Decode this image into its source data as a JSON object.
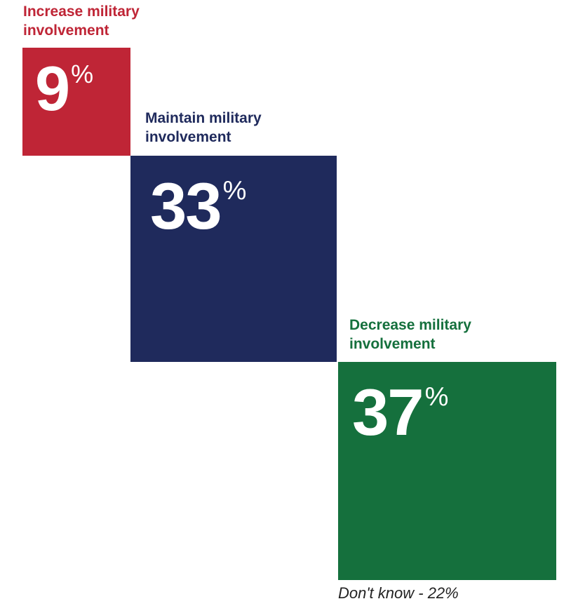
{
  "chart_data": {
    "type": "area",
    "categories": [
      "Increase military\ninvolvement",
      "Maintain military\ninvolvement",
      "Decrease military\ninvolvement"
    ],
    "values": [
      9,
      33,
      37
    ],
    "value_labels": [
      "9",
      "33",
      "37"
    ],
    "unit": "%",
    "colors": [
      "#bf2536",
      "#1f2a5c",
      "#15703d"
    ],
    "footnote": "Don't know - 22%"
  }
}
